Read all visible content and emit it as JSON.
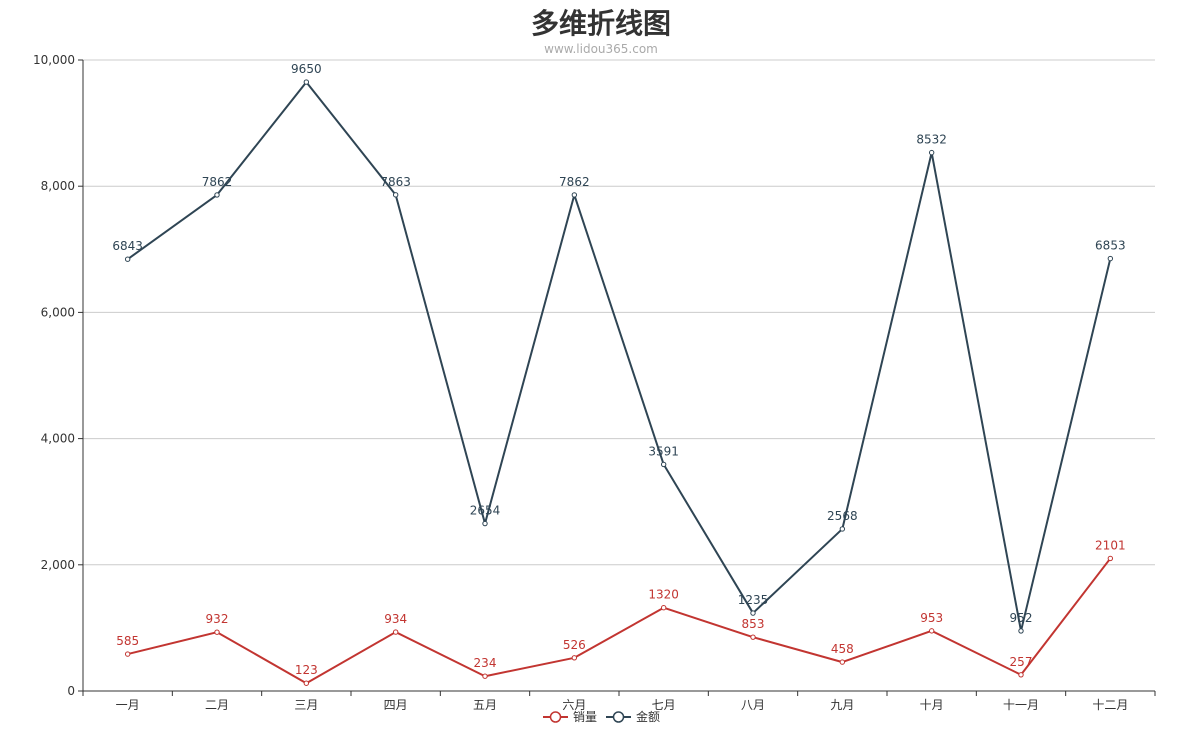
{
  "chart_data": {
    "type": "line",
    "title": "多维折线图",
    "subtitle": "www.lidou365.com",
    "categories": [
      "一月",
      "二月",
      "三月",
      "四月",
      "五月",
      "六月",
      "七月",
      "八月",
      "九月",
      "十月",
      "十一月",
      "十二月"
    ],
    "series": [
      {
        "name": "销量",
        "color": "#c23531",
        "values": [
          585,
          932,
          123,
          934,
          234,
          526,
          1320,
          853,
          458,
          953,
          257,
          2101
        ]
      },
      {
        "name": "金额",
        "color": "#2f4554",
        "values": [
          6843,
          7862,
          9650,
          7863,
          2654,
          7862,
          3591,
          1235,
          2568,
          8532,
          952,
          6853
        ]
      }
    ],
    "ylim": [
      0,
      10000
    ],
    "yticks": [
      0,
      2000,
      4000,
      6000,
      8000,
      10000
    ],
    "ytick_labels": [
      "0",
      "2,000",
      "4,000",
      "6,000",
      "8,000",
      "10,000"
    ],
    "grid": true,
    "legend_position": "bottom-center",
    "show_data_labels": true
  }
}
